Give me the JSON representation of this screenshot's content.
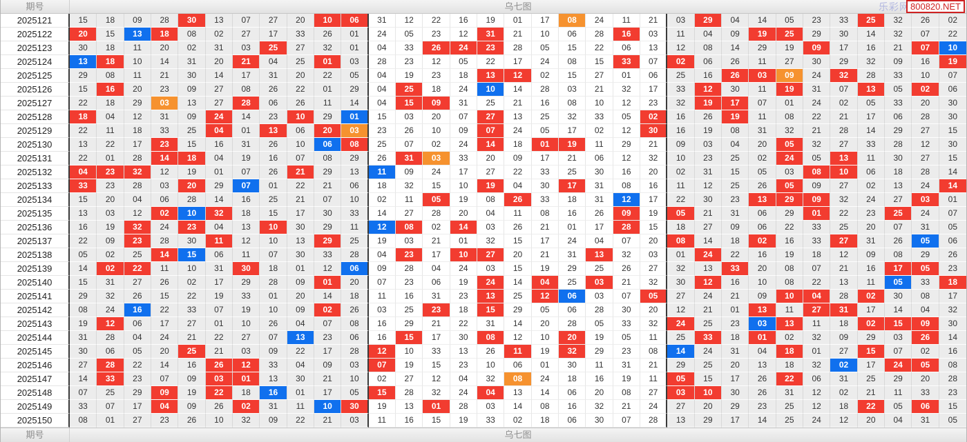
{
  "header": {
    "issue_label": "期号",
    "chart_title": "乌七图",
    "site_name": "乐彩网",
    "site_badge": "800820.NET"
  },
  "footer": {
    "issue_label": "期号",
    "chart_title": "乌七图"
  },
  "colors": {
    "red": "#f23c30",
    "blue": "#1070ee",
    "orange": "#f6922f"
  },
  "legend": {
    "highlight_flags": {
      "r": "red-highlight",
      "b": "blue-highlight",
      "o": "orange-highlight"
    }
  },
  "rows": [
    {
      "issue": "2025121",
      "cells": "15,18,09,28,30:r,13,07,27,20,10:r,06:r,31,12,22,16,19,01,17,08:o,24,11,21,03,29:r,04,14,05,23,33,25:r,32,26,02"
    },
    {
      "issue": "2025122",
      "cells": "20:r,15,13:b,18:r,08,02,27,17,33,26,01,24,05,23,12,31:r,21,10,06,28,16:r,03,11,04,09,19:r,25:r,29,30,14,32,07,22"
    },
    {
      "issue": "2025123",
      "cells": "30,18,11,20,02,31,03,25:r,27,32,01,04,33,26:r,24:r,23:r,28,05,15,22,06,13,12,08,14,29,19,09:r,17,16,21,07:r,10:b"
    },
    {
      "issue": "2025124",
      "cells": "13:b,18:r,10,14,31,20,21:r,04,25,01:r,03,28,23,12,05,22,17,24,08,15,33:r,07,02:r,06,26,11,27,30,29,32,09,16,19:r"
    },
    {
      "issue": "2025125",
      "cells": "29,08,11,21,30,14,17,31,20,22,05,04,19,23,18,13:r,12:r,02,15,27,01,06,25,16,26:r,03:r,09:o,24,32:r,28,33,10,07"
    },
    {
      "issue": "2025126",
      "cells": "15,16:r,20,23,09,27,08,26,22,01,29,04,25:r,18,24,10:b,14,28,03,21,32,17,33,12:r,30,11,19:r,31,07,13:r,05,02:r,06"
    },
    {
      "issue": "2025127",
      "cells": "22,18,29,03:o,13,27,28:r,06,26,11,14,04,15:r,09:r,31,25,21,16,08,10,12,23,32,19:r,17:r,07,01,24,02,05,33,20,30"
    },
    {
      "issue": "2025128",
      "cells": "18:r,04,12,31,09,24:r,14,23,10:r,29,01:b,15,03,20,07,27:r,13,25,32,33,05,02:r,16,26,19:r,11,08,22,21,17,06,28,30"
    },
    {
      "issue": "2025129",
      "cells": "22,11,18,33,25,04:r,01,13:r,06,20:r,03:o,23,26,10,09,07:r,24,05,17,02,12,30:r,16,19,08,31,32,21,28,14,29,27,15"
    },
    {
      "issue": "2025130",
      "cells": "13,22,17,23:r,15,16,31,26,10,06:b,08:r,25,07,02,24,14:r,18,01:r,19:r,11,29,21,09,03,04,20,05:r,32,27,33,28,12,30"
    },
    {
      "issue": "2025131",
      "cells": "22,01,28,14:r,18:r,04,19,16,07,08,29,26,31:r,03:o,33,20,09,17,21,06,12,32,10,23,25,02,24:r,05,13:r,11,30,27,15"
    },
    {
      "issue": "2025132",
      "cells": "04:r,23:r,32:r,12,19,01,07,26,21:r,29,13,11:b,09,24,17,27,22,33,25,30,16,20,02,31,15,05,03,08:r,10:r,06,18,28,14"
    },
    {
      "issue": "2025133",
      "cells": "33:r,23,28,03,20:r,29,07:b,01,22,21,06,18,32,15,10,19:r,04,30,17:r,31,08,16,11,12,25,26,05:r,09,27,02,13,24,14:r"
    },
    {
      "issue": "2025134",
      "cells": "15,20,04,06,28,14,16,25,21,07,10,02,11,05:r,19,08,26:r,33,18,31,12:b,17,22,30,23,13:r,29:r,09:r,32,24,27,03:r,01"
    },
    {
      "issue": "2025135",
      "cells": "13,03,12,02:r,10:b,32:r,18,15,17,30,33,14,27,28,20,04,11,08,16,26,09:r,19,05:r,21,31,06,29,01:r,22,23,25:r,24,07"
    },
    {
      "issue": "2025136",
      "cells": "16,19,32:r,24,23:r,04,13,10:r,30,29,11,12:b,08:r,02,14:r,03,26,21,01,17,28:r,15,18,27,09,06,22,33,25,20,07,31,05"
    },
    {
      "issue": "2025137",
      "cells": "22,09,23:r,28,30,11:r,12,10,13,29:r,25,19,03,21,01,32,15,17,24,04,07,20,08:r,14,18,02:r,16,33,27:r,31,26,05:b,06"
    },
    {
      "issue": "2025138",
      "cells": "05,02,25,14:r,15:b,06,11,07,30,33,28,04,23:r,17,10:r,27:r,20,21,31,13:r,32,03,01,24:r,22,16,19,18,12,09,08,29,26"
    },
    {
      "issue": "2025139",
      "cells": "14,02:r,22:r,11,10,31,30:r,18,01,12,06:b,09,28,04,24,03,15,19,29,25,26,27,32,13,33:r,20,08,07,21,16,17:r,05:r,23"
    },
    {
      "issue": "2025140",
      "cells": "15,31,27,26,02,17,29,28,09,01:r,20,07,23,06,19,24:r,14,04:r,25,03:r,21,32,30,12:r,16,10,08,22,13,11,05:b,33,18:r"
    },
    {
      "issue": "2025141",
      "cells": "29,32,26,15,22,19,33,01,20,14,18,11,16,31,23,13:r,25,12:r,06:b,03,07,05:r,27,24,21,09,10:r,04:r,28,02:r,30,08,17"
    },
    {
      "issue": "2025142",
      "cells": "08,24,16:b,22,33,07,19,10,09,02:r,26,03,25,23:r,18,15:r,29,05,06,28,30,20,12,21,01,13:r,11,27:r,31:r,17,14,04,32"
    },
    {
      "issue": "2025143",
      "cells": "19,12:r,06,17,27,01,10,26,04,07,08,16,29,21,22,31,14,20,28,05,33,32,24:r,25,23,03:b,13:r,11,18,02:r,15:r,09:r,30"
    },
    {
      "issue": "2025144",
      "cells": "31,28,04,24,21,22,27,07,13:b,23,06,16,15:r,17,30,08:r,12,10,20:r,19,05,11,25,33:r,18,01:r,02,32,09,29,03,26:r,14"
    },
    {
      "issue": "2025145",
      "cells": "30,06,05,20,25:r,21,03,09,22,17,28,12:r,10,33,13,26,11:r,19,32:r,29,23,08,14:b,24,31,04,18:r,01,27,15:r,07,02,16"
    },
    {
      "issue": "2025146",
      "cells": "27,28:r,22,14,16,26:r,12:r,33,04,09,03,07:r,19,15,23,10,06,01,30,11,31,21,29,25,20,13,18,32,02:b,17,24:r,05:r,08"
    },
    {
      "issue": "2025147",
      "cells": "14,33:r,23,07,09,03:r,01:r,13,30,21,10,02,27,12,04,32,08:o,24,18,16,19,11,05:r,15,17,26,22:r,06,31,25,29,20,28"
    },
    {
      "issue": "2025148",
      "cells": "07,25,29,09:r,19,22:r,18,16:b,01,17,05,15:r,28,32,24,04:r,13,14,06,20,08,27,03:r,10:r,30,26,31,12,02,21,11,33,23"
    },
    {
      "issue": "2025149",
      "cells": "33,07,17,04:r,09,26,02:r,31,11,10:b,30:r,19,13,01:r,28,03,14,08,16,32,21,24,27,20,29,23,25,12,18,22:r,05,06:r,15"
    },
    {
      "issue": "2025150",
      "cells": "08,01,27,23,26,10,32,09,22,21,03,11,16,15,19,33,02,18,06,30,07,28,13,29,17,14,25,24,12,20,04,31,05"
    }
  ]
}
